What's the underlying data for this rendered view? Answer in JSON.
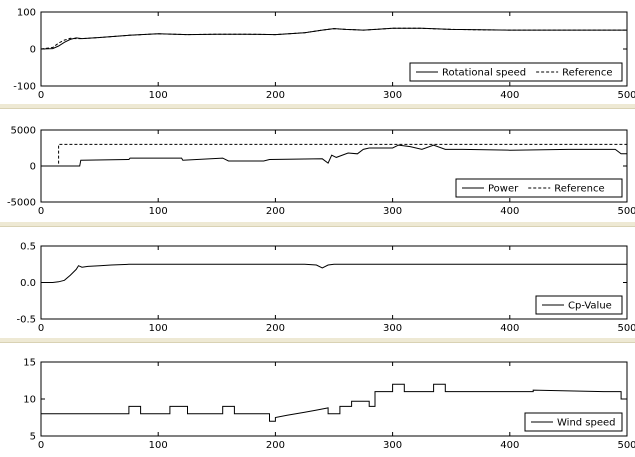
{
  "chart_data": [
    {
      "type": "line",
      "xlim": [
        0,
        500
      ],
      "ylim": [
        -100,
        100
      ],
      "xticks": [
        "0",
        "100",
        "200",
        "300",
        "400",
        "500"
      ],
      "yticks": [
        "100",
        "0",
        "-100"
      ],
      "legend_position": "bottom-right",
      "series": [
        {
          "name": "Rotational speed",
          "style": "solid",
          "x": [
            0,
            10,
            15,
            20,
            25,
            30,
            35,
            50,
            75,
            100,
            125,
            150,
            175,
            200,
            225,
            240,
            250,
            260,
            275,
            300,
            325,
            350,
            375,
            400,
            425,
            450,
            475,
            500
          ],
          "y": [
            0,
            1,
            8,
            18,
            26,
            30,
            28,
            31,
            37,
            41,
            39,
            40,
            40,
            39,
            44,
            51,
            55,
            53,
            51,
            56,
            56,
            53,
            52,
            51,
            51,
            51,
            51,
            51
          ]
        },
        {
          "name": "Reference",
          "style": "dashed",
          "x": [
            0,
            10,
            15,
            20,
            25,
            30,
            35,
            50,
            75,
            100,
            125,
            150,
            175,
            200,
            225,
            240,
            250,
            260,
            275,
            300,
            325,
            350,
            375,
            400,
            425,
            450,
            475,
            500
          ],
          "y": [
            0,
            4,
            16,
            24,
            29,
            28,
            28,
            31,
            37,
            41,
            39,
            40,
            40,
            39,
            44,
            51,
            55,
            53,
            51,
            56,
            56,
            53,
            52,
            51,
            51,
            51,
            51,
            51
          ]
        }
      ]
    },
    {
      "type": "line",
      "xlim": [
        0,
        500
      ],
      "ylim": [
        -5000,
        5000
      ],
      "xticks": [
        "0",
        "100",
        "200",
        "300",
        "400",
        "500"
      ],
      "yticks": [
        "5000",
        "0",
        "-5000"
      ],
      "legend_position": "bottom-right",
      "series": [
        {
          "name": "Power",
          "style": "solid",
          "x": [
            0,
            33,
            34,
            75,
            76,
            120,
            121,
            155,
            160,
            190,
            195,
            240,
            245,
            248,
            252,
            262,
            270,
            275,
            280,
            300,
            305,
            315,
            325,
            335,
            345,
            360,
            400,
            450,
            490,
            495,
            500
          ],
          "y": [
            0,
            0,
            800,
            900,
            1100,
            1100,
            800,
            1100,
            700,
            700,
            900,
            1000,
            400,
            1500,
            1200,
            1800,
            1700,
            2300,
            2500,
            2500,
            2900,
            2700,
            2300,
            2900,
            2300,
            2300,
            2200,
            2300,
            2300,
            1700,
            1700
          ]
        },
        {
          "name": "Reference",
          "style": "dashed",
          "x": [
            0,
            15,
            15,
            500
          ],
          "y": [
            0,
            0,
            3000,
            3000
          ]
        }
      ]
    },
    {
      "type": "line",
      "xlim": [
        0,
        500
      ],
      "ylim": [
        -0.5,
        0.5
      ],
      "xticks": [
        "0",
        "100",
        "200",
        "300",
        "400",
        "500"
      ],
      "yticks": [
        "0.5",
        "0.0",
        "-0.5"
      ],
      "legend_position": "bottom-right",
      "series": [
        {
          "name": "Cp-Value",
          "style": "solid",
          "x": [
            0,
            10,
            15,
            20,
            25,
            30,
            32,
            35,
            40,
            50,
            60,
            75,
            100,
            150,
            200,
            225,
            235,
            240,
            245,
            250,
            300,
            350,
            400,
            450,
            500
          ],
          "y": [
            0,
            0,
            0.01,
            0.03,
            0.1,
            0.18,
            0.23,
            0.21,
            0.22,
            0.23,
            0.24,
            0.25,
            0.25,
            0.25,
            0.25,
            0.25,
            0.24,
            0.2,
            0.24,
            0.25,
            0.25,
            0.25,
            0.25,
            0.25,
            0.25
          ]
        }
      ]
    },
    {
      "type": "line",
      "xlim": [
        0,
        500
      ],
      "ylim": [
        5,
        15
      ],
      "xticks": [
        "0",
        "100",
        "200",
        "300",
        "400",
        "500"
      ],
      "yticks": [
        "15",
        "10",
        "5"
      ],
      "legend_position": "bottom-right",
      "series": [
        {
          "name": "Wind speed",
          "style": "solid",
          "x": [
            0,
            75,
            75,
            85,
            85,
            110,
            110,
            125,
            125,
            155,
            155,
            165,
            165,
            195,
            195,
            200,
            200,
            210,
            225,
            235,
            245,
            245,
            255,
            255,
            265,
            265,
            280,
            280,
            285,
            285,
            300,
            300,
            310,
            310,
            335,
            335,
            345,
            345,
            420,
            420,
            480,
            480,
            495,
            495,
            500
          ],
          "y": [
            8,
            8,
            9,
            9,
            8,
            8,
            9,
            9,
            8,
            8,
            9,
            9,
            8,
            8,
            7,
            7,
            7.5,
            7.8,
            8.2,
            8.5,
            8.8,
            8,
            8,
            9,
            9,
            9.7,
            9.7,
            9,
            9,
            11,
            11,
            12,
            12,
            11,
            11,
            12,
            12,
            11,
            11,
            11.2,
            11,
            11,
            11,
            10,
            10
          ]
        }
      ]
    }
  ]
}
